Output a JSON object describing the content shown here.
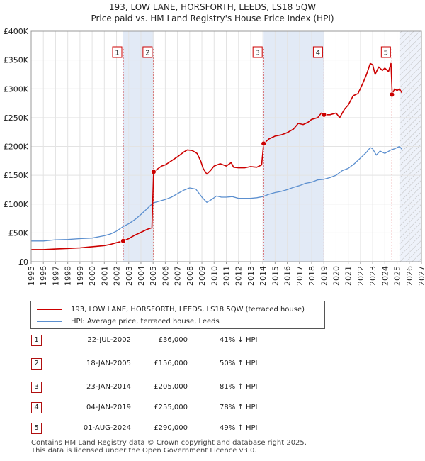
{
  "title": {
    "line1": "193, LOW LANE, HORSFORTH, LEEDS, LS18 5QW",
    "line2": "Price paid vs. HM Land Registry's House Price Index (HPI)"
  },
  "colors": {
    "property": "#cc0000",
    "hpi": "#5b8fcf",
    "marker_border": "#cc0000",
    "shade": "#dde6f5"
  },
  "chart_data": {
    "type": "line",
    "title": "Price paid vs. HM Land Registry's House Price Index (HPI)",
    "xlim": [
      1995,
      2027
    ],
    "ylim": [
      0,
      400000
    ],
    "x_ticks": [
      "1995",
      "1996",
      "1997",
      "1998",
      "1999",
      "2000",
      "2001",
      "2002",
      "2003",
      "2004",
      "2005",
      "2006",
      "2007",
      "2008",
      "2009",
      "2010",
      "2011",
      "2012",
      "2013",
      "2014",
      "2015",
      "2016",
      "2017",
      "2018",
      "2019",
      "2020",
      "2021",
      "2022",
      "2023",
      "2024",
      "2025",
      "2026",
      "2027"
    ],
    "y_ticks": [
      {
        "value": 0,
        "label": "£0"
      },
      {
        "value": 50000,
        "label": "£50K"
      },
      {
        "value": 100000,
        "label": "£100K"
      },
      {
        "value": 150000,
        "label": "£150K"
      },
      {
        "value": 200000,
        "label": "£200K"
      },
      {
        "value": 250000,
        "label": "£250K"
      },
      {
        "value": 300000,
        "label": "£300K"
      },
      {
        "value": 350000,
        "label": "£350K"
      },
      {
        "value": 400000,
        "label": "£400K"
      }
    ],
    "forecast_start": 2025.25,
    "series": [
      {
        "name": "193, LOW LANE, HORSFORTH, LEEDS, LS18 5QW (terraced house)",
        "color": "#cc0000",
        "points": [
          [
            1995.0,
            21000
          ],
          [
            1996.0,
            21000
          ],
          [
            1997.0,
            22000
          ],
          [
            1998.0,
            23000
          ],
          [
            1999.0,
            24000
          ],
          [
            2000.0,
            26000
          ],
          [
            2001.0,
            28000
          ],
          [
            2001.5,
            30000
          ],
          [
            2002.0,
            33000
          ],
          [
            2002.55,
            36000
          ],
          [
            2003.0,
            40000
          ],
          [
            2003.5,
            46000
          ],
          [
            2004.0,
            51000
          ],
          [
            2004.5,
            56000
          ],
          [
            2004.9,
            59000
          ],
          [
            2005.04,
            156000
          ],
          [
            2005.3,
            160000
          ],
          [
            2005.7,
            166000
          ],
          [
            2006.0,
            168000
          ],
          [
            2006.5,
            175000
          ],
          [
            2007.0,
            182000
          ],
          [
            2007.5,
            190000
          ],
          [
            2007.8,
            194000
          ],
          [
            2008.2,
            193000
          ],
          [
            2008.6,
            188000
          ],
          [
            2008.9,
            175000
          ],
          [
            2009.1,
            162000
          ],
          [
            2009.4,
            152000
          ],
          [
            2009.7,
            158000
          ],
          [
            2010.0,
            166000
          ],
          [
            2010.5,
            170000
          ],
          [
            2011.0,
            166000
          ],
          [
            2011.4,
            172000
          ],
          [
            2011.6,
            164000
          ],
          [
            2012.0,
            163000
          ],
          [
            2012.5,
            163000
          ],
          [
            2013.0,
            165000
          ],
          [
            2013.5,
            164000
          ],
          [
            2013.9,
            168000
          ],
          [
            2014.06,
            205000
          ],
          [
            2014.5,
            213000
          ],
          [
            2015.0,
            218000
          ],
          [
            2015.5,
            220000
          ],
          [
            2016.0,
            224000
          ],
          [
            2016.5,
            230000
          ],
          [
            2016.9,
            240000
          ],
          [
            2017.3,
            238000
          ],
          [
            2017.7,
            242000
          ],
          [
            2018.0,
            247000
          ],
          [
            2018.5,
            250000
          ],
          [
            2018.8,
            258000
          ],
          [
            2019.01,
            255000
          ],
          [
            2019.5,
            255000
          ],
          [
            2020.0,
            258000
          ],
          [
            2020.3,
            250000
          ],
          [
            2020.7,
            265000
          ],
          [
            2021.0,
            272000
          ],
          [
            2021.4,
            288000
          ],
          [
            2021.8,
            292000
          ],
          [
            2022.2,
            310000
          ],
          [
            2022.5,
            325000
          ],
          [
            2022.8,
            344000
          ],
          [
            2023.0,
            342000
          ],
          [
            2023.2,
            325000
          ],
          [
            2023.5,
            338000
          ],
          [
            2023.8,
            332000
          ],
          [
            2024.0,
            336000
          ],
          [
            2024.3,
            330000
          ],
          [
            2024.5,
            344000
          ],
          [
            2024.6,
            290000
          ],
          [
            2024.8,
            300000
          ],
          [
            2025.0,
            297000
          ],
          [
            2025.2,
            300000
          ],
          [
            2025.4,
            293000
          ]
        ]
      },
      {
        "name": "HPI: Average price, terraced house, Leeds",
        "color": "#5b8fcf",
        "points": [
          [
            1995.0,
            36000
          ],
          [
            1996.0,
            36000
          ],
          [
            1997.0,
            38000
          ],
          [
            1998.0,
            38500
          ],
          [
            1999.0,
            40000
          ],
          [
            2000.0,
            41000
          ],
          [
            2001.0,
            45000
          ],
          [
            2001.5,
            48000
          ],
          [
            2002.0,
            53000
          ],
          [
            2002.55,
            61000
          ],
          [
            2003.0,
            66000
          ],
          [
            2003.5,
            73000
          ],
          [
            2004.0,
            82000
          ],
          [
            2004.5,
            92000
          ],
          [
            2005.0,
            102000
          ],
          [
            2005.5,
            105000
          ],
          [
            2006.0,
            108000
          ],
          [
            2006.5,
            112000
          ],
          [
            2007.0,
            118000
          ],
          [
            2007.5,
            124000
          ],
          [
            2008.0,
            128000
          ],
          [
            2008.5,
            126000
          ],
          [
            2009.0,
            112000
          ],
          [
            2009.4,
            103000
          ],
          [
            2009.8,
            108000
          ],
          [
            2010.2,
            114000
          ],
          [
            2010.6,
            112000
          ],
          [
            2011.0,
            112000
          ],
          [
            2011.5,
            113000
          ],
          [
            2012.0,
            110000
          ],
          [
            2012.5,
            110000
          ],
          [
            2013.0,
            110000
          ],
          [
            2013.5,
            111000
          ],
          [
            2014.0,
            113000
          ],
          [
            2014.5,
            117000
          ],
          [
            2015.0,
            120000
          ],
          [
            2015.5,
            122000
          ],
          [
            2016.0,
            125000
          ],
          [
            2016.5,
            129000
          ],
          [
            2017.0,
            132000
          ],
          [
            2017.5,
            136000
          ],
          [
            2018.0,
            138000
          ],
          [
            2018.5,
            142000
          ],
          [
            2019.0,
            143000
          ],
          [
            2019.5,
            146000
          ],
          [
            2020.0,
            150000
          ],
          [
            2020.5,
            158000
          ],
          [
            2021.0,
            162000
          ],
          [
            2021.5,
            170000
          ],
          [
            2022.0,
            180000
          ],
          [
            2022.5,
            190000
          ],
          [
            2022.8,
            198000
          ],
          [
            2023.0,
            196000
          ],
          [
            2023.3,
            185000
          ],
          [
            2023.6,
            192000
          ],
          [
            2024.0,
            188000
          ],
          [
            2024.5,
            194000
          ],
          [
            2024.8,
            196000
          ],
          [
            2025.0,
            198000
          ],
          [
            2025.2,
            200000
          ],
          [
            2025.4,
            195000
          ]
        ]
      }
    ],
    "markers": [
      {
        "label": "1",
        "x": 2002.55,
        "y": 36000
      },
      {
        "label": "2",
        "x": 2005.04,
        "y": 156000
      },
      {
        "label": "3",
        "x": 2014.06,
        "y": 205000
      },
      {
        "label": "4",
        "x": 2019.01,
        "y": 255000
      },
      {
        "label": "5",
        "x": 2024.58,
        "y": 290000
      }
    ]
  },
  "legend": {
    "property": "193, LOW LANE, HORSFORTH, LEEDS, LS18 5QW (terraced house)",
    "hpi": "HPI: Average price, terraced house, Leeds"
  },
  "sales": [
    {
      "num": "1",
      "date": "22-JUL-2002",
      "price": "£36,000",
      "hpi": "41% ↓ HPI"
    },
    {
      "num": "2",
      "date": "18-JAN-2005",
      "price": "£156,000",
      "hpi": "50% ↑ HPI"
    },
    {
      "num": "3",
      "date": "23-JAN-2014",
      "price": "£205,000",
      "hpi": "81% ↑ HPI"
    },
    {
      "num": "4",
      "date": "04-JAN-2019",
      "price": "£255,000",
      "hpi": "78% ↑ HPI"
    },
    {
      "num": "5",
      "date": "01-AUG-2024",
      "price": "£290,000",
      "hpi": "49% ↑ HPI"
    }
  ],
  "footer": {
    "line1": "Contains HM Land Registry data © Crown copyright and database right 2025.",
    "line2": "This data is licensed under the Open Government Licence v3.0."
  }
}
